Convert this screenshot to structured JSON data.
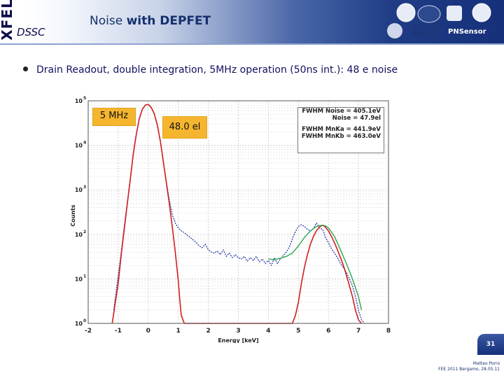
{
  "brand": {
    "xfel": "XFEL",
    "dssc": "DSSC"
  },
  "slide": {
    "title_plain": "Noise",
    "title_bold": "with DEPFET",
    "bullet": {
      "p1": "Drain Readout, ",
      "p2": "double integration,",
      "p3": " 5MHz ",
      "p4": "operation (50ns int.): ",
      "p5": "48 e noise"
    },
    "page_number": "31",
    "footer_line1": "Matteo Porro",
    "footer_line2": "FEE 2011 Bergamo, 28.05.11"
  },
  "logos": {
    "partner": "PNSensor"
  },
  "annotations": {
    "freq_label": "5 MHz",
    "noise_label": "48.0 el"
  },
  "fit_box": {
    "line1": "FWHM Noise = 405.1eV",
    "line2": "Noise = 47.9el",
    "line3": "FWHM MnKa = 441.9eV",
    "line4": "FWHM MnKb = 463.0eV"
  },
  "colors": {
    "measured": "#1f2fa8",
    "fit": "#d11f1f",
    "fit2": "#20a040",
    "header_dark": "#16307a",
    "note_bg": "#f5b52e"
  },
  "chart_data": {
    "type": "line",
    "xlabel": "Energy [keV]",
    "ylabel": "Counts",
    "xlim": [
      -2,
      8
    ],
    "ylim": [
      1,
      100000
    ],
    "yscale": "log",
    "grid": true,
    "x_ticks": [
      -2,
      -1,
      0,
      1,
      2,
      3,
      4,
      5,
      6,
      7,
      8
    ],
    "y_ticks": [
      {
        "label": "10",
        "exp": "0",
        "value": 1
      },
      {
        "label": "10",
        "exp": "1",
        "value": 10
      },
      {
        "label": "10",
        "exp": "2",
        "value": 100
      },
      {
        "label": "10",
        "exp": "3",
        "value": 1000
      },
      {
        "label": "10",
        "exp": "4",
        "value": 10000
      },
      {
        "label": "10",
        "exp": "5",
        "value": 100000
      }
    ],
    "series": [
      {
        "role": "measured",
        "x": [
          -1.15,
          -1.0,
          -0.9,
          -0.8,
          -0.7,
          -0.6,
          -0.5,
          -0.4,
          -0.3,
          -0.2,
          -0.1,
          0.0,
          0.1,
          0.2,
          0.3,
          0.4,
          0.5,
          0.6,
          0.7,
          0.8,
          0.9,
          1.0,
          1.1,
          1.2,
          1.3,
          1.4,
          1.5,
          1.6,
          1.7,
          1.8,
          1.9,
          2.0,
          2.1,
          2.2,
          2.3,
          2.4,
          2.5,
          2.6,
          2.7,
          2.8,
          2.9,
          3.0,
          3.1,
          3.2,
          3.3,
          3.4,
          3.5,
          3.6,
          3.7,
          3.8,
          3.9,
          4.0,
          4.1,
          4.2,
          4.3,
          4.4,
          4.5,
          4.6,
          4.7,
          4.8,
          4.9,
          5.0,
          5.1,
          5.2,
          5.3,
          5.4,
          5.5,
          5.6,
          5.7,
          5.8,
          5.85,
          5.9,
          6.0,
          6.1,
          6.2,
          6.3,
          6.4,
          6.5,
          6.6,
          6.7,
          6.8,
          6.9,
          7.0,
          7.1,
          7.2
        ],
        "y": [
          2,
          12,
          40,
          150,
          500,
          1800,
          6500,
          18000,
          40000,
          65000,
          80000,
          82000,
          70000,
          50000,
          28000,
          13000,
          4500,
          1600,
          600,
          280,
          180,
          140,
          120,
          110,
          95,
          85,
          75,
          65,
          55,
          50,
          60,
          45,
          40,
          38,
          42,
          35,
          45,
          32,
          38,
          30,
          35,
          30,
          28,
          32,
          25,
          30,
          26,
          32,
          24,
          28,
          22,
          26,
          20,
          30,
          22,
          28,
          34,
          40,
          52,
          80,
          115,
          150,
          165,
          150,
          130,
          120,
          135,
          180,
          140,
          130,
          110,
          85,
          65,
          48,
          38,
          30,
          22,
          18,
          14,
          10,
          7,
          4,
          2,
          1.2,
          1
        ]
      },
      {
        "role": "fit",
        "x": [
          -1.2,
          -1.0,
          -0.9,
          -0.8,
          -0.7,
          -0.6,
          -0.5,
          -0.4,
          -0.3,
          -0.2,
          -0.1,
          0.0,
          0.1,
          0.2,
          0.3,
          0.4,
          0.5,
          0.6,
          0.7,
          0.8,
          0.9,
          1.0,
          1.05,
          1.1,
          1.2,
          4.8,
          4.9,
          5.0,
          5.1,
          5.2,
          5.3,
          5.4,
          5.5,
          5.6,
          5.7,
          5.8,
          5.85,
          5.9,
          6.0,
          6.1,
          6.2,
          6.3,
          6.4,
          6.5,
          6.6,
          6.7,
          6.8,
          6.9,
          7.0,
          7.1
        ],
        "y": [
          1,
          8,
          35,
          130,
          480,
          1700,
          6200,
          17000,
          39000,
          64000,
          80000,
          83000,
          71000,
          51000,
          29000,
          12500,
          4300,
          1500,
          500,
          150,
          40,
          9,
          3.5,
          1.5,
          1,
          1,
          1.5,
          3,
          8,
          18,
          35,
          60,
          90,
          120,
          145,
          160,
          155,
          145,
          120,
          90,
          65,
          45,
          30,
          20,
          12,
          7,
          4,
          2,
          1.2,
          1
        ]
      },
      {
        "role": "fit2",
        "x": [
          4.0,
          4.2,
          4.4,
          4.6,
          4.8,
          5.0,
          5.2,
          5.4,
          5.6,
          5.8,
          5.9,
          6.0,
          6.2,
          6.4,
          6.6,
          6.8,
          7.0,
          7.1
        ],
        "y": [
          28,
          27,
          29,
          32,
          38,
          55,
          85,
          120,
          150,
          160,
          155,
          140,
          90,
          45,
          22,
          10,
          4,
          2
        ]
      }
    ]
  }
}
